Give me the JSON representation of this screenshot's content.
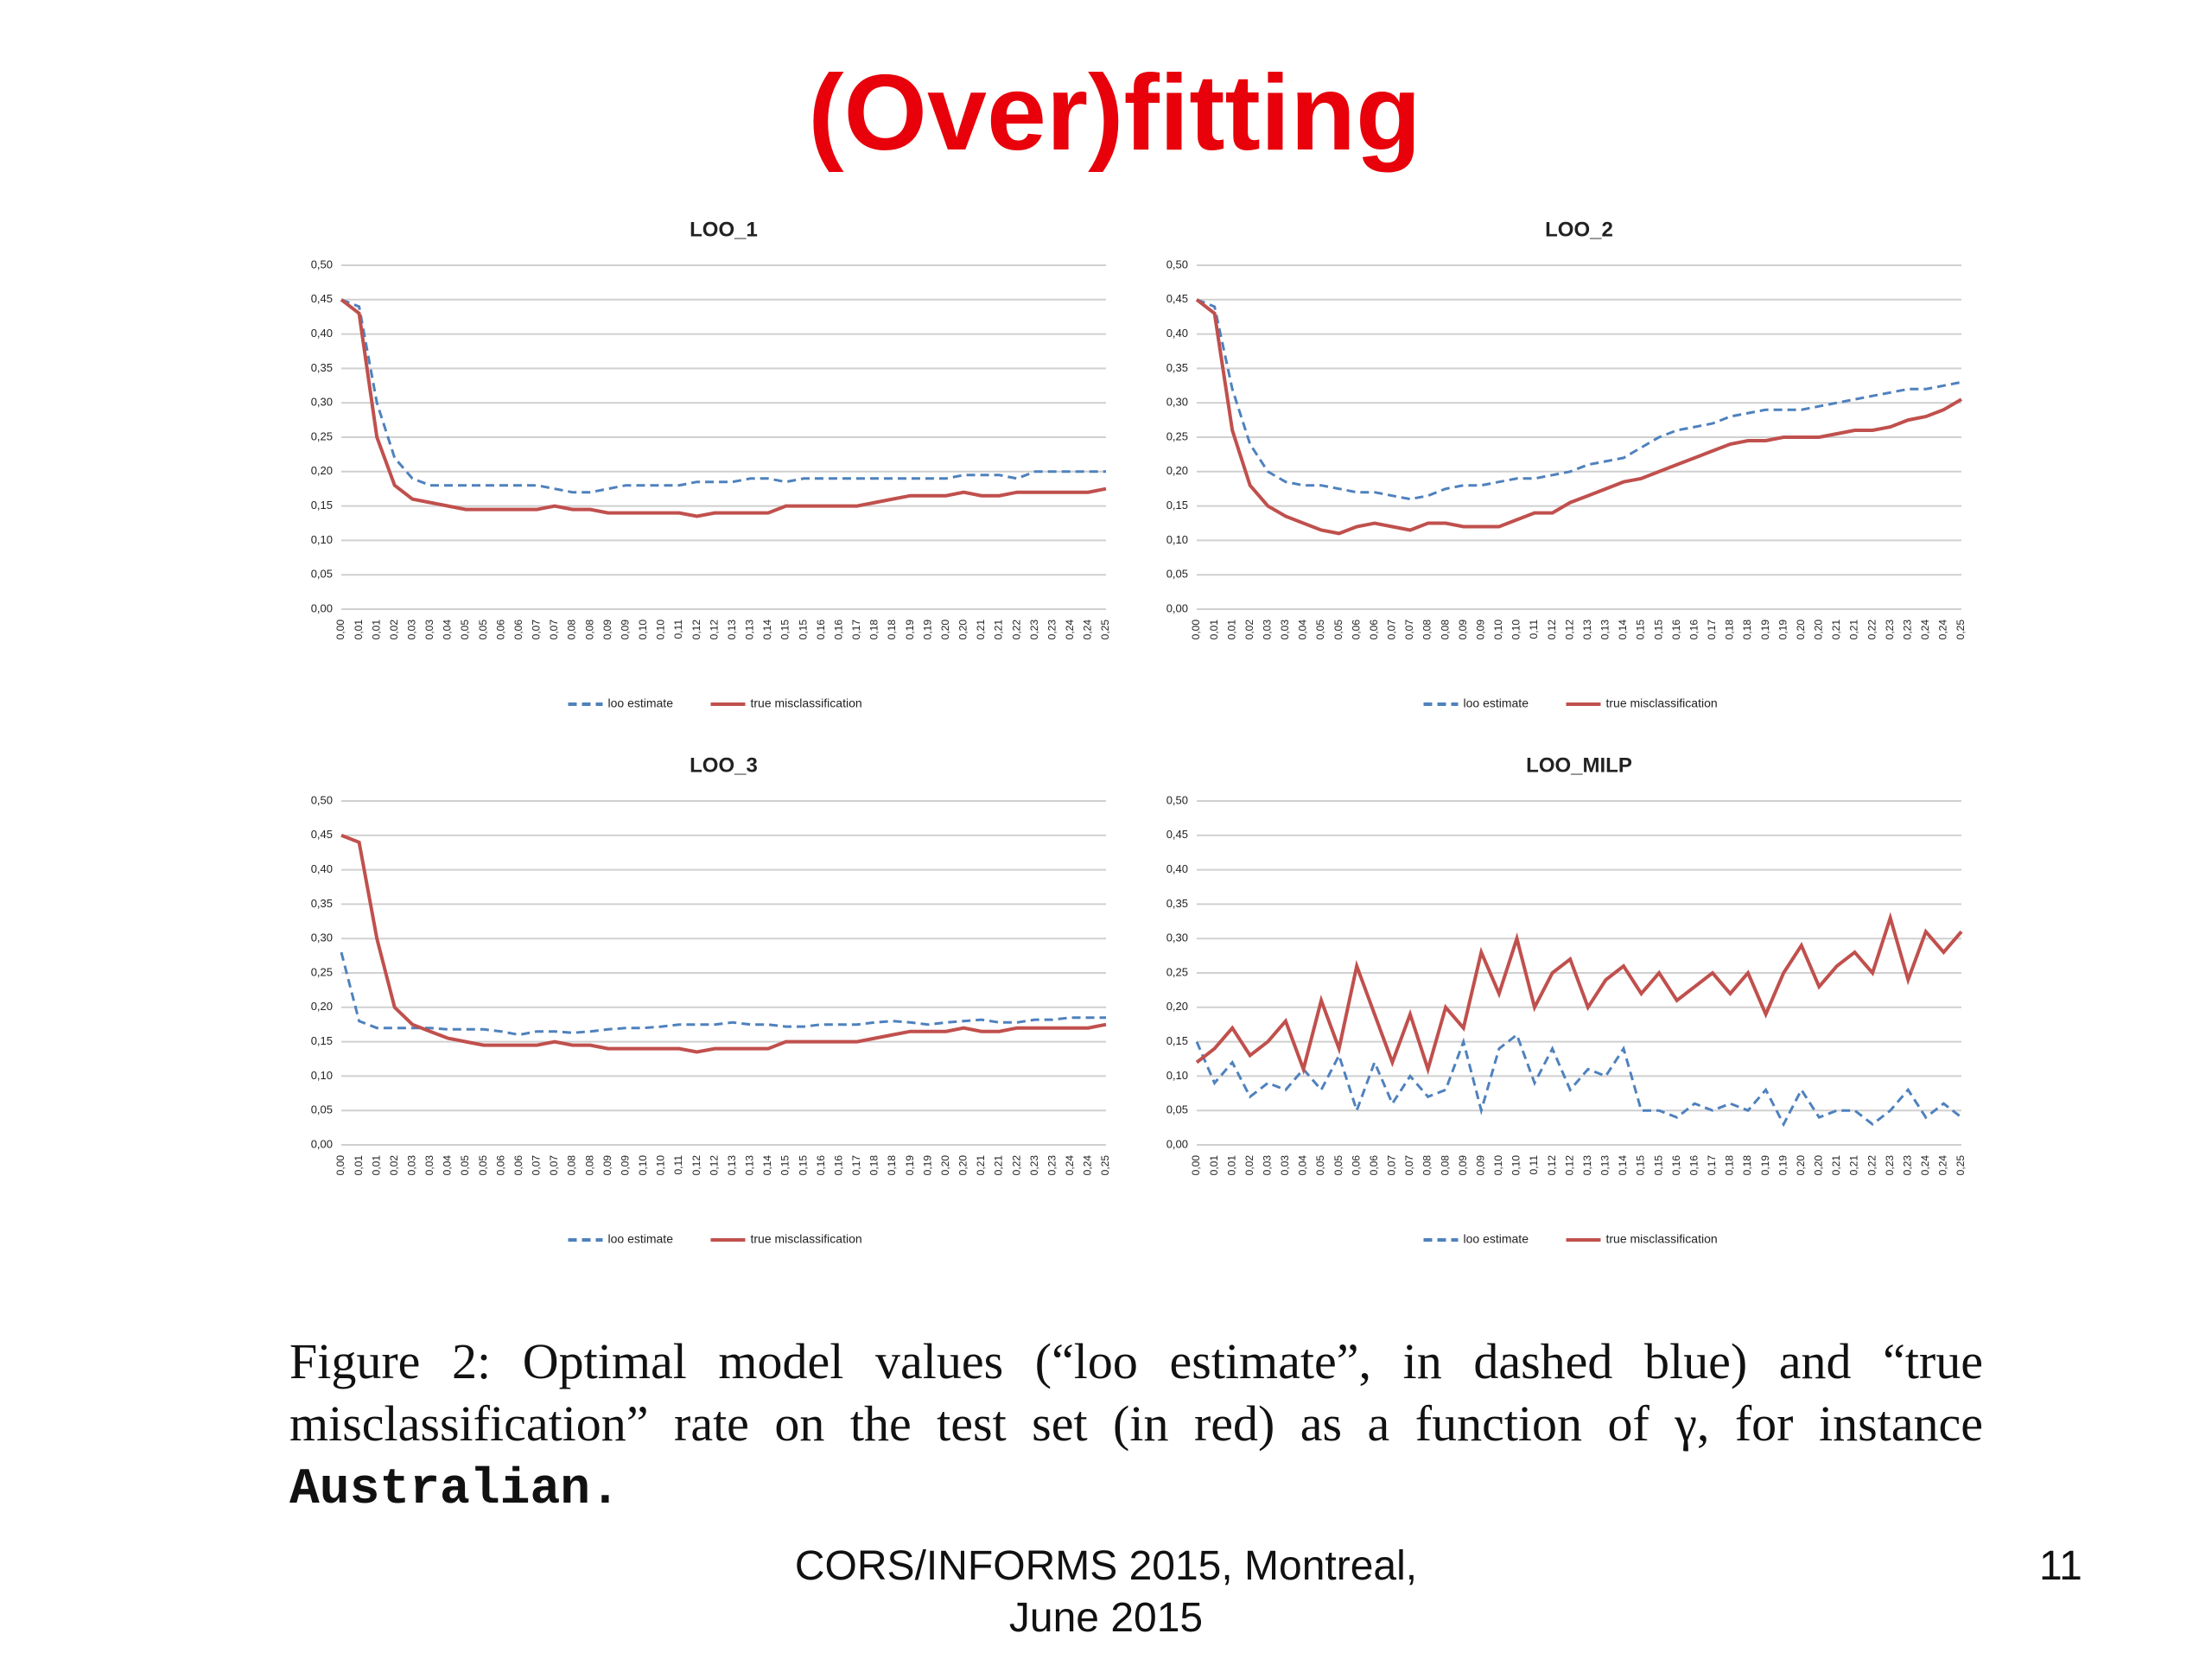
{
  "title": "(Over)fitting",
  "chart_data": [
    {
      "type": "line",
      "title": "LOO_1",
      "categories": [
        "0,00",
        "0,01",
        "0,01",
        "0,02",
        "0,03",
        "0,03",
        "0,04",
        "0,05",
        "0,05",
        "0,06",
        "0,06",
        "0,07",
        "0,07",
        "0,08",
        "0,08",
        "0,09",
        "0,09",
        "0,10",
        "0,10",
        "0,11",
        "0,12",
        "0,12",
        "0,13",
        "0,13",
        "0,14",
        "0,15",
        "0,15",
        "0,16",
        "0,16",
        "0,17",
        "0,18",
        "0,18",
        "0,19",
        "0,19",
        "0,20",
        "0,20",
        "0,21",
        "0,21",
        "0,22",
        "0,23",
        "0,23",
        "0,24",
        "0,24",
        "0,25"
      ],
      "series": [
        {
          "name": "loo estimate",
          "color": "#4f81bd",
          "style": "dashed",
          "values": [
            0.45,
            0.44,
            0.3,
            0.22,
            0.19,
            0.18,
            0.18,
            0.18,
            0.18,
            0.18,
            0.18,
            0.18,
            0.175,
            0.17,
            0.17,
            0.175,
            0.18,
            0.18,
            0.18,
            0.18,
            0.185,
            0.185,
            0.185,
            0.19,
            0.19,
            0.185,
            0.19,
            0.19,
            0.19,
            0.19,
            0.19,
            0.19,
            0.19,
            0.19,
            0.19,
            0.195,
            0.195,
            0.195,
            0.19,
            0.2,
            0.2,
            0.2,
            0.2,
            0.2
          ]
        },
        {
          "name": "true misclassification",
          "color": "#c0504d",
          "style": "solid",
          "values": [
            0.45,
            0.43,
            0.25,
            0.18,
            0.16,
            0.155,
            0.15,
            0.145,
            0.145,
            0.145,
            0.145,
            0.145,
            0.15,
            0.145,
            0.145,
            0.14,
            0.14,
            0.14,
            0.14,
            0.14,
            0.135,
            0.14,
            0.14,
            0.14,
            0.14,
            0.15,
            0.15,
            0.15,
            0.15,
            0.15,
            0.155,
            0.16,
            0.165,
            0.165,
            0.165,
            0.17,
            0.165,
            0.165,
            0.17,
            0.17,
            0.17,
            0.17,
            0.17,
            0.175
          ]
        }
      ],
      "ylim": [
        0,
        0.5
      ],
      "yticks": [
        {
          "value": 0,
          "label": "0,00"
        },
        {
          "value": 0.05,
          "label": "0,05"
        },
        {
          "value": 0.1,
          "label": "0,10"
        },
        {
          "value": 0.15,
          "label": "0,15"
        },
        {
          "value": 0.2,
          "label": "0,20"
        },
        {
          "value": 0.25,
          "label": "0,25"
        },
        {
          "value": 0.3,
          "label": "0,30"
        },
        {
          "value": 0.35,
          "label": "0,35"
        },
        {
          "value": 0.4,
          "label": "0,40"
        },
        {
          "value": 0.45,
          "label": "0,45"
        },
        {
          "value": 0.5,
          "label": "0,50"
        }
      ],
      "grid": true,
      "legend": "bottom"
    },
    {
      "type": "line",
      "title": "LOO_2",
      "categories": [
        "0,00",
        "0,01",
        "0,01",
        "0,02",
        "0,03",
        "0,03",
        "0,04",
        "0,05",
        "0,05",
        "0,06",
        "0,06",
        "0,07",
        "0,07",
        "0,08",
        "0,08",
        "0,09",
        "0,09",
        "0,10",
        "0,10",
        "0,11",
        "0,12",
        "0,12",
        "0,13",
        "0,13",
        "0,14",
        "0,15",
        "0,15",
        "0,16",
        "0,16",
        "0,17",
        "0,18",
        "0,18",
        "0,19",
        "0,19",
        "0,20",
        "0,20",
        "0,21",
        "0,21",
        "0,22",
        "0,23",
        "0,23",
        "0,24",
        "0,24",
        "0,25"
      ],
      "series": [
        {
          "name": "loo estimate",
          "color": "#4f81bd",
          "style": "dashed",
          "values": [
            0.45,
            0.44,
            0.32,
            0.24,
            0.2,
            0.185,
            0.18,
            0.18,
            0.175,
            0.17,
            0.17,
            0.165,
            0.16,
            0.165,
            0.175,
            0.18,
            0.18,
            0.185,
            0.19,
            0.19,
            0.195,
            0.2,
            0.21,
            0.215,
            0.22,
            0.235,
            0.25,
            0.26,
            0.265,
            0.27,
            0.28,
            0.285,
            0.29,
            0.29,
            0.29,
            0.295,
            0.3,
            0.305,
            0.31,
            0.315,
            0.32,
            0.32,
            0.325,
            0.33
          ]
        },
        {
          "name": "true misclassification",
          "color": "#c0504d",
          "style": "solid",
          "values": [
            0.45,
            0.43,
            0.26,
            0.18,
            0.15,
            0.135,
            0.125,
            0.115,
            0.11,
            0.12,
            0.125,
            0.12,
            0.115,
            0.125,
            0.125,
            0.12,
            0.12,
            0.12,
            0.13,
            0.14,
            0.14,
            0.155,
            0.165,
            0.175,
            0.185,
            0.19,
            0.2,
            0.21,
            0.22,
            0.23,
            0.24,
            0.245,
            0.245,
            0.25,
            0.25,
            0.25,
            0.255,
            0.26,
            0.26,
            0.265,
            0.275,
            0.28,
            0.29,
            0.305
          ]
        }
      ],
      "ylim": [
        0,
        0.5
      ],
      "yticks": [
        {
          "value": 0,
          "label": "0,00"
        },
        {
          "value": 0.05,
          "label": "0,05"
        },
        {
          "value": 0.1,
          "label": "0,10"
        },
        {
          "value": 0.15,
          "label": "0,15"
        },
        {
          "value": 0.2,
          "label": "0,20"
        },
        {
          "value": 0.25,
          "label": "0,25"
        },
        {
          "value": 0.3,
          "label": "0,30"
        },
        {
          "value": 0.35,
          "label": "0,35"
        },
        {
          "value": 0.4,
          "label": "0,40"
        },
        {
          "value": 0.45,
          "label": "0,45"
        },
        {
          "value": 0.5,
          "label": "0,50"
        }
      ],
      "grid": true,
      "legend": "bottom"
    },
    {
      "type": "line",
      "title": "LOO_3",
      "categories": [
        "0,00",
        "0,01",
        "0,01",
        "0,02",
        "0,03",
        "0,03",
        "0,04",
        "0,05",
        "0,05",
        "0,06",
        "0,06",
        "0,07",
        "0,07",
        "0,08",
        "0,08",
        "0,09",
        "0,09",
        "0,10",
        "0,10",
        "0,11",
        "0,12",
        "0,12",
        "0,13",
        "0,13",
        "0,14",
        "0,15",
        "0,15",
        "0,16",
        "0,16",
        "0,17",
        "0,18",
        "0,18",
        "0,19",
        "0,19",
        "0,20",
        "0,20",
        "0,21",
        "0,21",
        "0,22",
        "0,23",
        "0,23",
        "0,24",
        "0,24",
        "0,25"
      ],
      "series": [
        {
          "name": "loo estimate",
          "color": "#4f81bd",
          "style": "dashed",
          "values": [
            0.28,
            0.18,
            0.17,
            0.17,
            0.17,
            0.17,
            0.168,
            0.168,
            0.168,
            0.165,
            0.16,
            0.165,
            0.165,
            0.163,
            0.165,
            0.168,
            0.17,
            0.17,
            0.172,
            0.175,
            0.175,
            0.175,
            0.178,
            0.175,
            0.175,
            0.172,
            0.172,
            0.175,
            0.175,
            0.175,
            0.178,
            0.18,
            0.178,
            0.175,
            0.178,
            0.18,
            0.182,
            0.178,
            0.178,
            0.182,
            0.182,
            0.185,
            0.185,
            0.185
          ]
        },
        {
          "name": "true misclassification",
          "color": "#c0504d",
          "style": "solid",
          "values": [
            0.45,
            0.44,
            0.3,
            0.2,
            0.175,
            0.165,
            0.155,
            0.15,
            0.145,
            0.145,
            0.145,
            0.145,
            0.15,
            0.145,
            0.145,
            0.14,
            0.14,
            0.14,
            0.14,
            0.14,
            0.135,
            0.14,
            0.14,
            0.14,
            0.14,
            0.15,
            0.15,
            0.15,
            0.15,
            0.15,
            0.155,
            0.16,
            0.165,
            0.165,
            0.165,
            0.17,
            0.165,
            0.165,
            0.17,
            0.17,
            0.17,
            0.17,
            0.17,
            0.175
          ]
        }
      ],
      "ylim": [
        0,
        0.5
      ],
      "yticks": [
        {
          "value": 0,
          "label": "0,00"
        },
        {
          "value": 0.05,
          "label": "0,05"
        },
        {
          "value": 0.1,
          "label": "0,10"
        },
        {
          "value": 0.15,
          "label": "0,15"
        },
        {
          "value": 0.2,
          "label": "0,20"
        },
        {
          "value": 0.25,
          "label": "0,25"
        },
        {
          "value": 0.3,
          "label": "0,30"
        },
        {
          "value": 0.35,
          "label": "0,35"
        },
        {
          "value": 0.4,
          "label": "0,40"
        },
        {
          "value": 0.45,
          "label": "0,45"
        },
        {
          "value": 0.5,
          "label": "0,50"
        }
      ],
      "grid": true,
      "legend": "bottom"
    },
    {
      "type": "line",
      "title": "LOO_MILP",
      "categories": [
        "0,00",
        "0,01",
        "0,01",
        "0,02",
        "0,03",
        "0,03",
        "0,04",
        "0,05",
        "0,05",
        "0,06",
        "0,06",
        "0,07",
        "0,07",
        "0,08",
        "0,08",
        "0,09",
        "0,09",
        "0,10",
        "0,10",
        "0,11",
        "0,12",
        "0,12",
        "0,13",
        "0,13",
        "0,14",
        "0,15",
        "0,15",
        "0,16",
        "0,16",
        "0,17",
        "0,18",
        "0,18",
        "0,19",
        "0,19",
        "0,20",
        "0,20",
        "0,21",
        "0,21",
        "0,22",
        "0,23",
        "0,23",
        "0,24",
        "0,24",
        "0,25"
      ],
      "series": [
        {
          "name": "loo estimate",
          "color": "#4f81bd",
          "style": "dashed",
          "values": [
            0.15,
            0.09,
            0.12,
            0.07,
            0.09,
            0.08,
            0.11,
            0.08,
            0.13,
            0.05,
            0.12,
            0.06,
            0.1,
            0.07,
            0.08,
            0.15,
            0.05,
            0.14,
            0.16,
            0.09,
            0.14,
            0.08,
            0.11,
            0.1,
            0.14,
            0.05,
            0.05,
            0.04,
            0.06,
            0.05,
            0.06,
            0.05,
            0.08,
            0.03,
            0.08,
            0.04,
            0.05,
            0.05,
            0.03,
            0.05,
            0.08,
            0.04,
            0.06,
            0.04
          ]
        },
        {
          "name": "true misclassification",
          "color": "#c0504d",
          "style": "solid",
          "values": [
            0.12,
            0.14,
            0.17,
            0.13,
            0.15,
            0.18,
            0.11,
            0.21,
            0.14,
            0.26,
            0.19,
            0.12,
            0.19,
            0.11,
            0.2,
            0.17,
            0.28,
            0.22,
            0.3,
            0.2,
            0.25,
            0.27,
            0.2,
            0.24,
            0.26,
            0.22,
            0.25,
            0.21,
            0.23,
            0.25,
            0.22,
            0.25,
            0.19,
            0.25,
            0.29,
            0.23,
            0.26,
            0.28,
            0.25,
            0.33,
            0.24,
            0.31,
            0.28,
            0.31
          ]
        }
      ],
      "ylim": [
        0,
        0.5
      ],
      "yticks": [
        {
          "value": 0,
          "label": "0,00"
        },
        {
          "value": 0.05,
          "label": "0,05"
        },
        {
          "value": 0.1,
          "label": "0,10"
        },
        {
          "value": 0.15,
          "label": "0,15"
        },
        {
          "value": 0.2,
          "label": "0,20"
        },
        {
          "value": 0.25,
          "label": "0,25"
        },
        {
          "value": 0.3,
          "label": "0,30"
        },
        {
          "value": 0.35,
          "label": "0,35"
        },
        {
          "value": 0.4,
          "label": "0,40"
        },
        {
          "value": 0.45,
          "label": "0,45"
        },
        {
          "value": 0.5,
          "label": "0,50"
        }
      ],
      "grid": true,
      "legend": "bottom"
    }
  ],
  "caption": {
    "text": "Figure 2: Optimal model values (“loo estimate”, in dashed blue) and “true misclassification” rate on the test set (in red) as a function of γ, for instance",
    "code": "Australian."
  },
  "footer": {
    "line1": "CORS/INFORMS 2015, Montreal,",
    "line2": "June 2015",
    "page": "11"
  }
}
